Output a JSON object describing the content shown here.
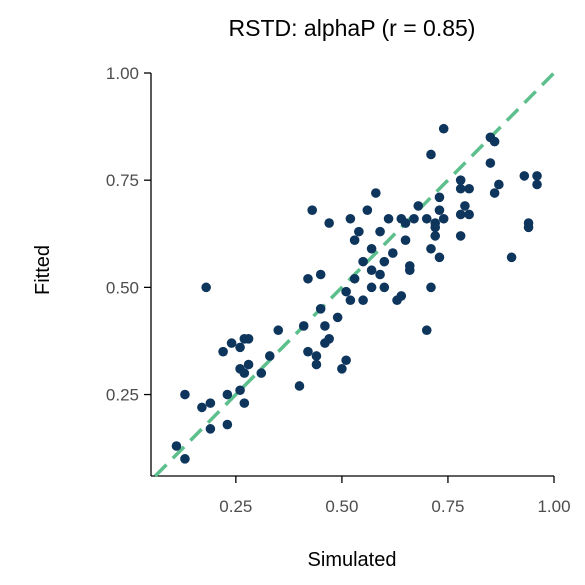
{
  "chart_data": {
    "type": "scatter",
    "title": "RSTD: alphaP (r = 0.85)",
    "xlabel": "Simulated",
    "ylabel": "Fitted",
    "xlim": [
      0.05,
      1.0
    ],
    "ylim": [
      0.06,
      1.0
    ],
    "x_ticks": [
      0.25,
      0.5,
      0.75,
      1.0
    ],
    "x_tick_labels": [
      "0.25",
      "0.50",
      "0.75",
      "1.00"
    ],
    "y_ticks": [
      0.25,
      0.5,
      0.75,
      1.0
    ],
    "y_tick_labels": [
      "0.25",
      "0.50",
      "0.75",
      "1.00"
    ],
    "grid": false,
    "legend": "none",
    "reference_line": {
      "type": "identity",
      "style": "dashed",
      "color": "#5dbf8c"
    },
    "point_color": "#0e355c",
    "points": [
      [
        0.11,
        0.13
      ],
      [
        0.13,
        0.1
      ],
      [
        0.13,
        0.25
      ],
      [
        0.17,
        0.22
      ],
      [
        0.18,
        0.5
      ],
      [
        0.19,
        0.17
      ],
      [
        0.19,
        0.23
      ],
      [
        0.22,
        0.35
      ],
      [
        0.23,
        0.18
      ],
      [
        0.23,
        0.25
      ],
      [
        0.24,
        0.37
      ],
      [
        0.26,
        0.36
      ],
      [
        0.26,
        0.31
      ],
      [
        0.26,
        0.26
      ],
      [
        0.27,
        0.38
      ],
      [
        0.27,
        0.23
      ],
      [
        0.27,
        0.3
      ],
      [
        0.28,
        0.38
      ],
      [
        0.28,
        0.32
      ],
      [
        0.31,
        0.3
      ],
      [
        0.33,
        0.34
      ],
      [
        0.35,
        0.4
      ],
      [
        0.4,
        0.27
      ],
      [
        0.41,
        0.41
      ],
      [
        0.42,
        0.52
      ],
      [
        0.42,
        0.35
      ],
      [
        0.43,
        0.68
      ],
      [
        0.44,
        0.34
      ],
      [
        0.44,
        0.32
      ],
      [
        0.45,
        0.45
      ],
      [
        0.45,
        0.53
      ],
      [
        0.46,
        0.41
      ],
      [
        0.46,
        0.37
      ],
      [
        0.47,
        0.38
      ],
      [
        0.47,
        0.65
      ],
      [
        0.49,
        0.43
      ],
      [
        0.5,
        0.31
      ],
      [
        0.51,
        0.33
      ],
      [
        0.51,
        0.49
      ],
      [
        0.52,
        0.47
      ],
      [
        0.52,
        0.66
      ],
      [
        0.53,
        0.61
      ],
      [
        0.53,
        0.52
      ],
      [
        0.54,
        0.63
      ],
      [
        0.55,
        0.47
      ],
      [
        0.55,
        0.56
      ],
      [
        0.56,
        0.68
      ],
      [
        0.57,
        0.59
      ],
      [
        0.57,
        0.5
      ],
      [
        0.57,
        0.54
      ],
      [
        0.58,
        0.72
      ],
      [
        0.59,
        0.63
      ],
      [
        0.59,
        0.53
      ],
      [
        0.6,
        0.5
      ],
      [
        0.6,
        0.56
      ],
      [
        0.61,
        0.66
      ],
      [
        0.62,
        0.58
      ],
      [
        0.63,
        0.47
      ],
      [
        0.64,
        0.66
      ],
      [
        0.64,
        0.48
      ],
      [
        0.65,
        0.65
      ],
      [
        0.65,
        0.61
      ],
      [
        0.66,
        0.55
      ],
      [
        0.66,
        0.54
      ],
      [
        0.67,
        0.66
      ],
      [
        0.68,
        0.69
      ],
      [
        0.7,
        0.4
      ],
      [
        0.7,
        0.66
      ],
      [
        0.71,
        0.59
      ],
      [
        0.71,
        0.5
      ],
      [
        0.71,
        0.81
      ],
      [
        0.72,
        0.65
      ],
      [
        0.72,
        0.64
      ],
      [
        0.72,
        0.62
      ],
      [
        0.73,
        0.68
      ],
      [
        0.73,
        0.57
      ],
      [
        0.73,
        0.71
      ],
      [
        0.74,
        0.66
      ],
      [
        0.74,
        0.87
      ],
      [
        0.78,
        0.75
      ],
      [
        0.78,
        0.73
      ],
      [
        0.78,
        0.67
      ],
      [
        0.78,
        0.62
      ],
      [
        0.79,
        0.69
      ],
      [
        0.8,
        0.67
      ],
      [
        0.8,
        0.73
      ],
      [
        0.85,
        0.85
      ],
      [
        0.85,
        0.79
      ],
      [
        0.86,
        0.72
      ],
      [
        0.86,
        0.84
      ],
      [
        0.87,
        0.74
      ],
      [
        0.9,
        0.57
      ],
      [
        0.93,
        0.76
      ],
      [
        0.94,
        0.65
      ],
      [
        0.94,
        0.64
      ],
      [
        0.96,
        0.74
      ],
      [
        0.96,
        0.76
      ]
    ]
  }
}
